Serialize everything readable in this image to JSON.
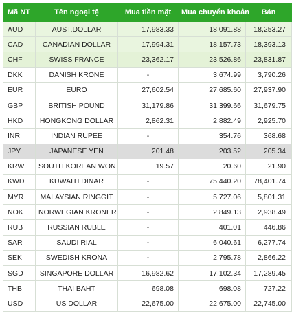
{
  "header": {
    "code": "Mã NT",
    "name": "Tên ngoại tệ",
    "buy_cash": "Mua tiền mặt",
    "buy_transfer": "Mua chuyển khoản",
    "sell": "Bán"
  },
  "colors": {
    "header_bg": "#2ea62a",
    "highlight_rows": "#e9f5df",
    "selected_row": "#dcdcdc"
  },
  "rows": [
    {
      "code": "AUD",
      "name": "AUST.DOLLAR",
      "buy_cash": "17,983.33",
      "buy_transfer": "18,091.88",
      "sell": "18,253.27"
    },
    {
      "code": "CAD",
      "name": "CANADIAN DOLLAR",
      "buy_cash": "17,994.31",
      "buy_transfer": "18,157.73",
      "sell": "18,393.13"
    },
    {
      "code": "CHF",
      "name": "SWISS FRANCE",
      "buy_cash": "23,362.17",
      "buy_transfer": "23,526.86",
      "sell": "23,831.87"
    },
    {
      "code": "DKK",
      "name": "DANISH KRONE",
      "buy_cash": "-",
      "buy_transfer": "3,674.99",
      "sell": "3,790.26"
    },
    {
      "code": "EUR",
      "name": "EURO",
      "buy_cash": "27,602.54",
      "buy_transfer": "27,685.60",
      "sell": "27,937.90"
    },
    {
      "code": "GBP",
      "name": "BRITISH POUND",
      "buy_cash": "31,179.86",
      "buy_transfer": "31,399.66",
      "sell": "31,679.75"
    },
    {
      "code": "HKD",
      "name": "HONGKONG DOLLAR",
      "buy_cash": "2,862.31",
      "buy_transfer": "2,882.49",
      "sell": "2,925.70"
    },
    {
      "code": "INR",
      "name": "INDIAN RUPEE",
      "buy_cash": "-",
      "buy_transfer": "354.76",
      "sell": "368.68"
    },
    {
      "code": "JPY",
      "name": "JAPANESE YEN",
      "buy_cash": "201.48",
      "buy_transfer": "203.52",
      "sell": "205.34"
    },
    {
      "code": "KRW",
      "name": "SOUTH KOREAN WON",
      "buy_cash": "19.57",
      "buy_transfer": "20.60",
      "sell": "21.90"
    },
    {
      "code": "KWD",
      "name": "KUWAITI DINAR",
      "buy_cash": "-",
      "buy_transfer": "75,440.20",
      "sell": "78,401.74"
    },
    {
      "code": "MYR",
      "name": "MALAYSIAN RINGGIT",
      "buy_cash": "-",
      "buy_transfer": "5,727.06",
      "sell": "5,801.31"
    },
    {
      "code": "NOK",
      "name": "NORWEGIAN KRONER",
      "buy_cash": "-",
      "buy_transfer": "2,849.13",
      "sell": "2,938.49"
    },
    {
      "code": "RUB",
      "name": "RUSSIAN RUBLE",
      "buy_cash": "-",
      "buy_transfer": "401.01",
      "sell": "446.86"
    },
    {
      "code": "SAR",
      "name": "SAUDI RIAL",
      "buy_cash": "-",
      "buy_transfer": "6,040.61",
      "sell": "6,277.74"
    },
    {
      "code": "SEK",
      "name": "SWEDISH KRONA",
      "buy_cash": "-",
      "buy_transfer": "2,795.78",
      "sell": "2,866.22"
    },
    {
      "code": "SGD",
      "name": "SINGAPORE DOLLAR",
      "buy_cash": "16,982.62",
      "buy_transfer": "17,102.34",
      "sell": "17,289.45"
    },
    {
      "code": "THB",
      "name": "THAI BAHT",
      "buy_cash": "698.08",
      "buy_transfer": "698.08",
      "sell": "727.22"
    },
    {
      "code": "USD",
      "name": "US DOLLAR",
      "buy_cash": "22,675.00",
      "buy_transfer": "22,675.00",
      "sell": "22,745.00"
    }
  ]
}
